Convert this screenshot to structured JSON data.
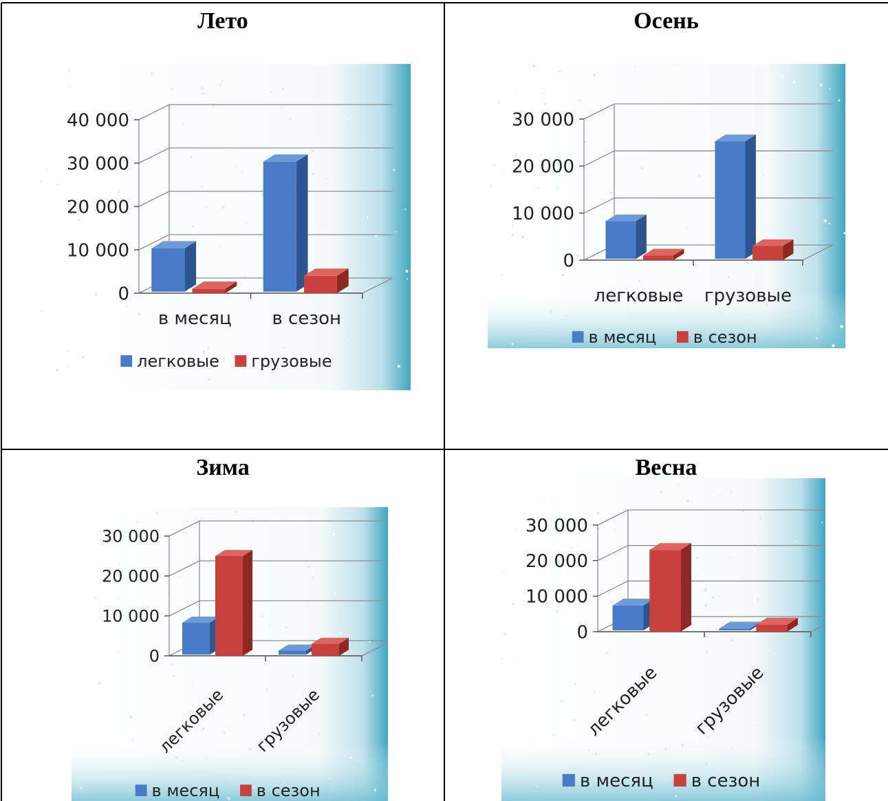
{
  "chart_data": [
    {
      "type": "bar",
      "title": "Лето",
      "categories": [
        "в месяц",
        "в сезон"
      ],
      "series": [
        {
          "name": "легковые",
          "values": [
            10000,
            30000
          ]
        },
        {
          "name": "грузовые",
          "values": [
            1000,
            4000
          ]
        }
      ],
      "ylim": [
        0,
        40000
      ],
      "yticks": [
        "0",
        "10 000",
        "20 000",
        "30 000",
        "40 000"
      ],
      "legend": "bottom",
      "grid": true
    },
    {
      "type": "bar",
      "title": "Осень",
      "categories": [
        "легковые",
        "грузовые"
      ],
      "series": [
        {
          "name": "в месяц",
          "values": [
            8000,
            25000
          ]
        },
        {
          "name": "в сезон",
          "values": [
            1000,
            3000
          ]
        }
      ],
      "ylim": [
        0,
        30000
      ],
      "yticks": [
        "0",
        "10 000",
        "20 000",
        "30 000"
      ],
      "legend": "bottom",
      "grid": true
    },
    {
      "type": "bar",
      "title": "Зима",
      "categories": [
        "легковые",
        "грузовые"
      ],
      "series": [
        {
          "name": "в месяц",
          "values": [
            8000,
            1000
          ]
        },
        {
          "name": "в сезон",
          "values": [
            25000,
            3000
          ]
        }
      ],
      "ylim": [
        0,
        30000
      ],
      "yticks": [
        "0",
        "10 000",
        "20 000",
        "30 000"
      ],
      "legend": "bottom",
      "grid": true
    },
    {
      "type": "bar",
      "title": "Весна",
      "categories": [
        "легковые",
        "грузовые"
      ],
      "series": [
        {
          "name": "в месяц",
          "values": [
            7000,
            500
          ]
        },
        {
          "name": "в сезон",
          "values": [
            23000,
            2000
          ]
        }
      ],
      "ylim": [
        0,
        30000
      ],
      "yticks": [
        "0",
        "10 000",
        "20 000",
        "30 000"
      ],
      "legend": "bottom",
      "grid": true
    }
  ],
  "colors": {
    "series1": "#4a7bc8",
    "series1_dark": "#2e5590",
    "series1_top": "#6f9ad8",
    "series2": "#c9413c",
    "series2_dark": "#8f2723",
    "series2_top": "#dd6560"
  }
}
